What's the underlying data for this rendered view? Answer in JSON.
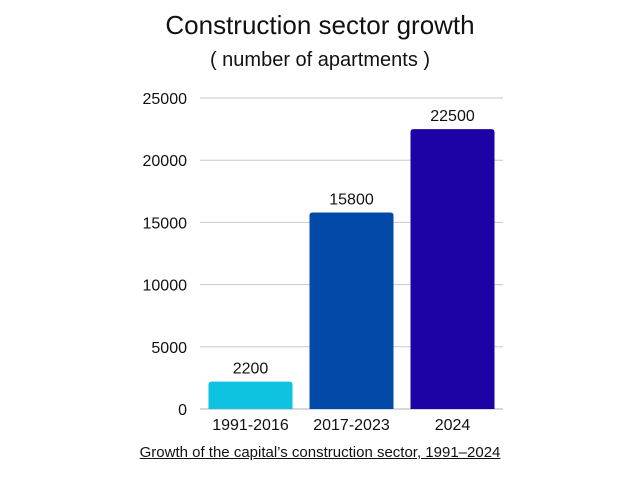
{
  "chart_data": {
    "type": "bar",
    "title": "Construction sector growth",
    "subtitle": "( number of apartments )",
    "categories": [
      "1991-2016",
      "2017-2023",
      "2024"
    ],
    "values": [
      2200,
      15800,
      22500
    ],
    "data_labels": [
      "2200",
      "15800",
      "22500"
    ],
    "colors": [
      "#0ec2e2",
      "#0249a8",
      "#1d02a6"
    ],
    "ylim": [
      0,
      25000
    ],
    "yticks": [
      0,
      5000,
      10000,
      15000,
      20000,
      25000
    ],
    "grid": true,
    "xlabel": "",
    "ylabel": ""
  },
  "caption": "Growth of the capital’s construction sector, 1991–2024"
}
